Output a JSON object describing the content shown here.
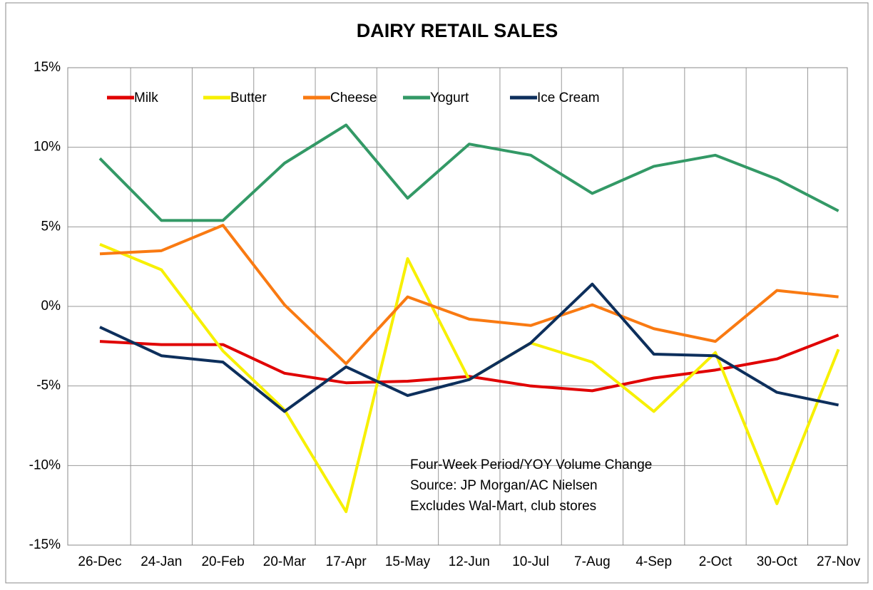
{
  "chart_data": {
    "type": "line",
    "title": "DAIRY RETAIL SALES",
    "categories": [
      "26-Dec",
      "24-Jan",
      "20-Feb",
      "20-Mar",
      "17-Apr",
      "15-May",
      "12-Jun",
      "10-Jul",
      "7-Aug",
      "4-Sep",
      "2-Oct",
      "30-Oct",
      "27-Nov"
    ],
    "series": [
      {
        "name": "Milk",
        "color": "#e00000",
        "values": [
          -2.2,
          -2.4,
          -2.4,
          -4.2,
          -4.8,
          -4.7,
          -4.4,
          -5.0,
          -5.3,
          -4.5,
          -4.0,
          -3.3,
          -1.8
        ]
      },
      {
        "name": "Butter",
        "color": "#f7f000",
        "values": [
          3.9,
          2.3,
          -2.8,
          -6.5,
          -12.9,
          3.0,
          -4.6,
          -2.3,
          -3.5,
          -6.6,
          -2.9,
          -12.4,
          -2.7
        ]
      },
      {
        "name": "Cheese",
        "color": "#f97a12",
        "values": [
          3.3,
          3.5,
          5.1,
          0.1,
          -3.6,
          0.6,
          -0.8,
          -1.2,
          0.1,
          -1.4,
          -2.2,
          1.0,
          0.6
        ]
      },
      {
        "name": "Yogurt",
        "color": "#339966",
        "values": [
          9.3,
          5.4,
          5.4,
          9.0,
          11.4,
          6.8,
          10.2,
          9.5,
          7.1,
          8.8,
          9.5,
          8.0,
          6.0
        ]
      },
      {
        "name": "Ice Cream",
        "color": "#0d2f5c",
        "values": [
          -1.3,
          -3.1,
          -3.5,
          -6.6,
          -3.8,
          -5.6,
          -4.6,
          -2.3,
          1.4,
          -3.0,
          -3.1,
          -5.4,
          -6.2
        ]
      }
    ],
    "ylim": [
      -15,
      15
    ],
    "yticks": [
      {
        "value": -15,
        "label": "-15%"
      },
      {
        "value": -10,
        "label": "-10%"
      },
      {
        "value": -5,
        "label": "-5%"
      },
      {
        "value": 0,
        "label": "0%"
      },
      {
        "value": 5,
        "label": "5%"
      },
      {
        "value": 10,
        "label": "10%"
      },
      {
        "value": 15,
        "label": "15%"
      }
    ],
    "grid": true,
    "legend": "top",
    "annotations": [
      "Four-Week Period/YOY Volume Change",
      "Source: JP Morgan/AC Nielsen",
      "Excludes Wal-Mart, club stores"
    ]
  }
}
